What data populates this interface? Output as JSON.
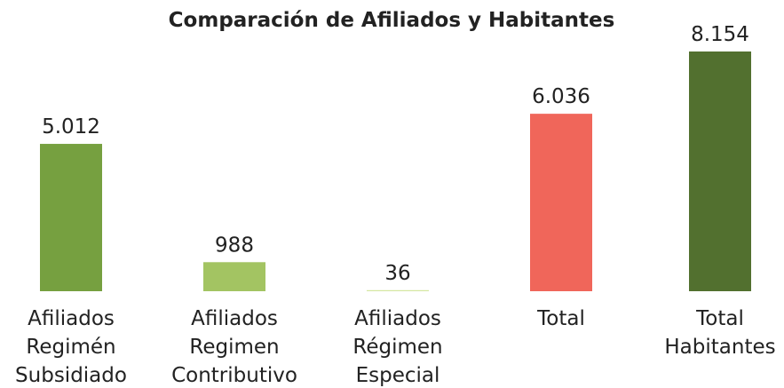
{
  "chart_data": {
    "type": "bar",
    "title": "Comparación de Afiliados y Habitantes",
    "categories": [
      "Afiliados Regimén Subsidiado",
      "Afiliados Regimen Contributivo",
      "Afiliados Régimen Especial",
      "Total",
      "Total Habitantes"
    ],
    "values": [
      5012,
      988,
      36,
      6036,
      8154
    ],
    "value_labels": [
      "5.012",
      "988",
      "36",
      "6.036",
      "8.154"
    ],
    "colors": [
      "#76a040",
      "#a3c462",
      "#d4e6a0",
      "#f0665a",
      "#52702f"
    ]
  }
}
